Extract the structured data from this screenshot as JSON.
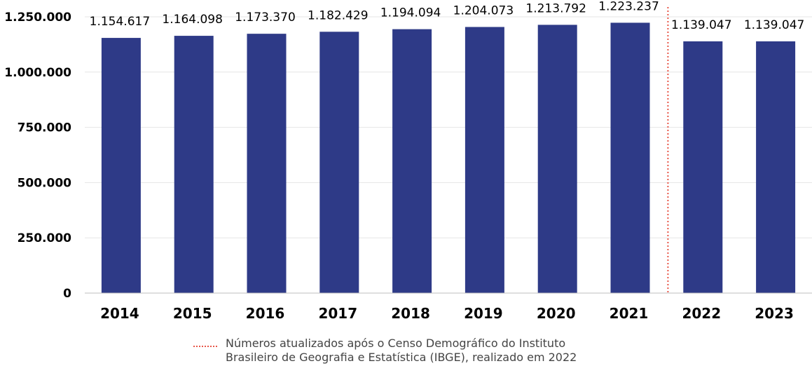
{
  "chart_data": {
    "type": "bar",
    "categories": [
      "2014",
      "2015",
      "2016",
      "2017",
      "2018",
      "2019",
      "2020",
      "2021",
      "2022",
      "2023"
    ],
    "values": [
      1154617,
      1164098,
      1173370,
      1182429,
      1194094,
      1204073,
      1213792,
      1223237,
      1139047,
      1139047
    ],
    "data_labels": [
      "1.154.617",
      "1.164.098",
      "1.173.370",
      "1.182.429",
      "1.194.094",
      "1.204.073",
      "1.213.792",
      "1.223.237",
      "1.139.047",
      "1.139.047"
    ],
    "ylim": [
      0,
      1250000
    ],
    "yticks": [
      0,
      250000,
      500000,
      750000,
      1000000,
      1250000
    ],
    "ytick_labels": [
      "0",
      "250.000",
      "500.000",
      "750.000",
      "1.000.000",
      "1.250.000"
    ],
    "grid": true,
    "bar_color": "#2e3a87",
    "marker_line": {
      "between": [
        "2021",
        "2022"
      ],
      "color": "#e8574a",
      "style": "dotted"
    },
    "legend": {
      "position": "bottom",
      "lines": [
        "Números atualizados após o Censo Demográfico do Instituto",
        "Brasileiro de Geografia e Estatística (IBGE), realizado em 2022"
      ]
    }
  }
}
